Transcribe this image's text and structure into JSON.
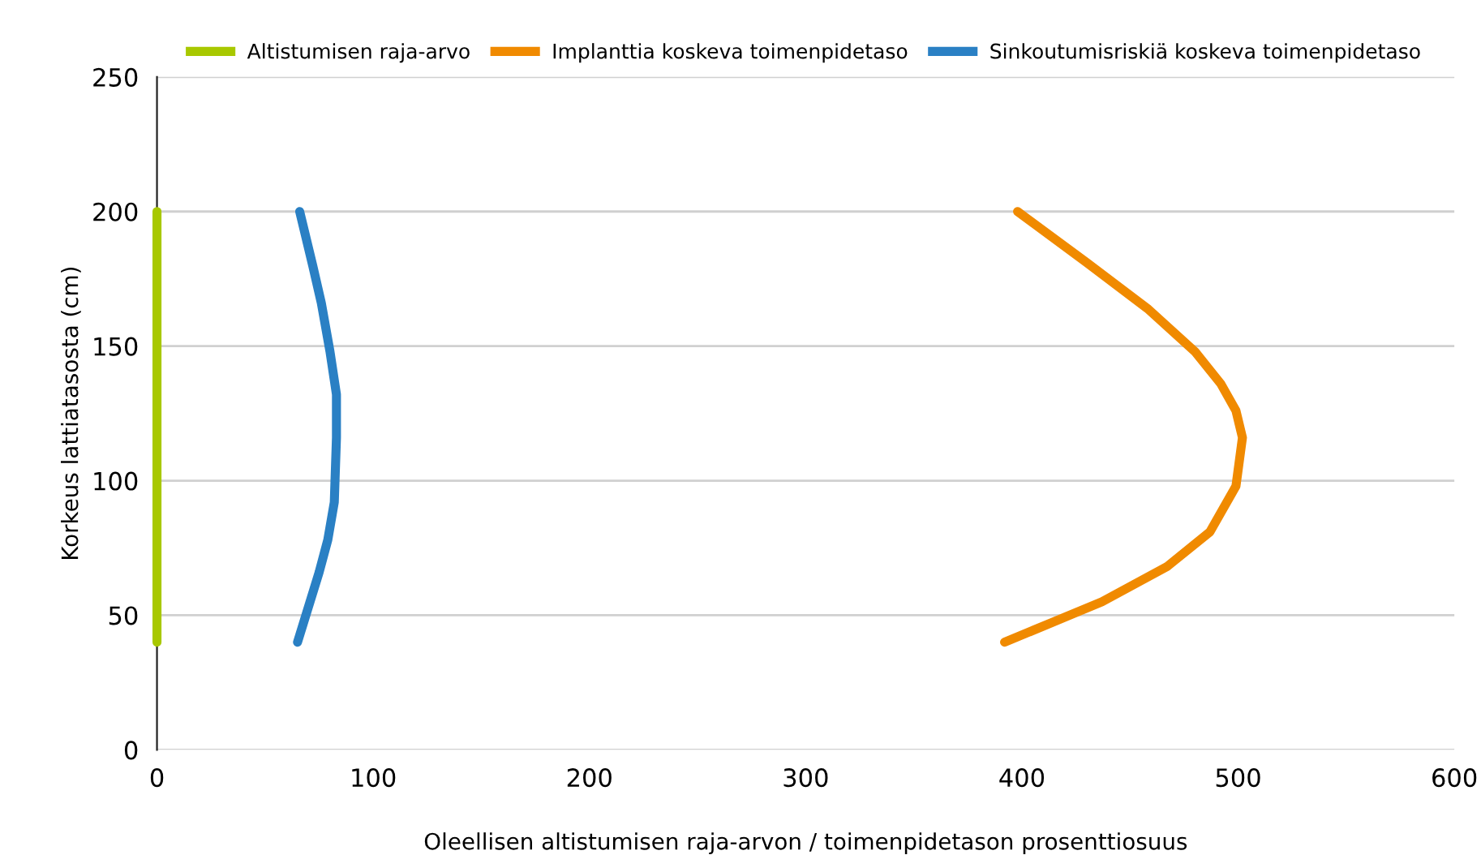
{
  "chart_data": {
    "type": "line",
    "xlabel": "Oleellisen altistumisen raja-arvon / toimenpidetason prosenttiosuus",
    "ylabel": "Korkeus lattiatasosta (cm)",
    "xlim": [
      0,
      600
    ],
    "xticks": [
      0,
      100,
      200,
      300,
      400,
      500,
      600
    ],
    "ylim": [
      0,
      250
    ],
    "yticks": [
      0,
      50,
      100,
      150,
      200,
      250
    ],
    "grid": "y",
    "legend": "top",
    "line_style": "solid",
    "marker": "none",
    "series": [
      {
        "name": "Altistumisen raja-arvo",
        "color": "#a8c800",
        "x": [
          0,
          0,
          0,
          0,
          0
        ],
        "values": [
          40,
          80,
          120,
          160,
          200
        ]
      },
      {
        "name": "Implanttia koskeva toimenpidetaso",
        "color": "#f08a00",
        "x": [
          398,
          430,
          458,
          480,
          492,
          499,
          502,
          499,
          487,
          467,
          437,
          392
        ],
        "values": [
          200,
          181,
          164,
          148,
          136,
          126,
          116,
          98,
          81,
          68,
          55,
          40
        ]
      },
      {
        "name": "Sinkoutumisriskiä koskeva toimenpidetaso",
        "color": "#2a80c4",
        "x": [
          66,
          72,
          76,
          80,
          83,
          83,
          82,
          79,
          75,
          65
        ],
        "values": [
          200,
          180,
          166,
          148,
          132,
          116,
          92,
          78,
          66,
          40
        ]
      }
    ]
  }
}
